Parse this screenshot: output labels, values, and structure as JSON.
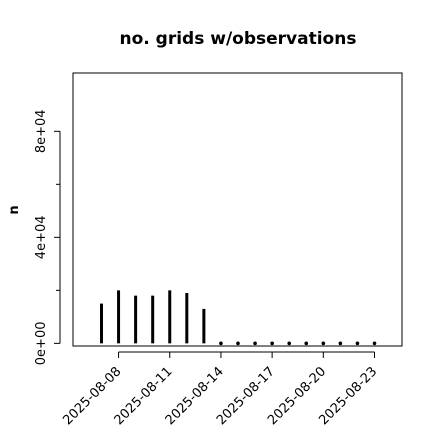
{
  "chart_data": {
    "type": "bar",
    "title": "no. grids w/observations",
    "xlabel": "",
    "ylabel": "n",
    "x": [
      "2025-08-07",
      "2025-08-08",
      "2025-08-09",
      "2025-08-10",
      "2025-08-11",
      "2025-08-12",
      "2025-08-13",
      "2025-08-14",
      "2025-08-15",
      "2025-08-16",
      "2025-08-17",
      "2025-08-18",
      "2025-08-19",
      "2025-08-20",
      "2025-08-21",
      "2025-08-22",
      "2025-08-23"
    ],
    "values": [
      15000,
      20000,
      18000,
      18000,
      20000,
      19000,
      13000,
      0,
      0,
      0,
      0,
      0,
      0,
      0,
      0,
      0,
      0
    ],
    "ylim": [
      -1000,
      102000
    ],
    "yticks": [
      0,
      40000,
      80000
    ],
    "ytick_labels": [
      "0e+00",
      "4e+04",
      "8e+04"
    ],
    "xtick_labels": [
      {
        "label": "2025-08-08",
        "color": "#000000"
      },
      {
        "label": "2025-08-11",
        "color": "#000000"
      },
      {
        "label": "2025-08-14",
        "color": "#228B22"
      },
      {
        "label": "2025-08-17",
        "color": "#000000"
      },
      {
        "label": "2025-08-20",
        "color": "#000000"
      },
      {
        "label": "2025-08-23",
        "color": "#000000"
      }
    ],
    "grid": false,
    "bar_color": "#000000"
  }
}
